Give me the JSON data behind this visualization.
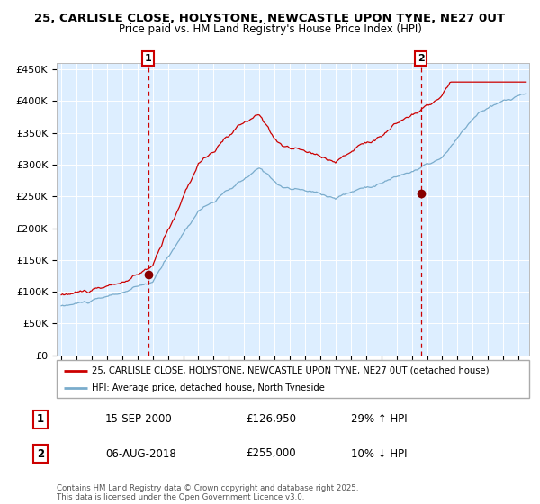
{
  "title1": "25, CARLISLE CLOSE, HOLYSTONE, NEWCASTLE UPON TYNE, NE27 0UT",
  "title2": "Price paid vs. HM Land Registry's House Price Index (HPI)",
  "legend_line1": "25, CARLISLE CLOSE, HOLYSTONE, NEWCASTLE UPON TYNE, NE27 0UT (detached house)",
  "legend_line2": "HPI: Average price, detached house, North Tyneside",
  "marker1_date": "15-SEP-2000",
  "marker1_price": "£126,950",
  "marker1_hpi": "29% ↑ HPI",
  "marker2_date": "06-AUG-2018",
  "marker2_price": "£255,000",
  "marker2_hpi": "10% ↓ HPI",
  "footer": "Contains HM Land Registry data © Crown copyright and database right 2025.\nThis data is licensed under the Open Government Licence v3.0.",
  "red_color": "#cc0000",
  "blue_color": "#7aaccc",
  "bg_color": "#ddeeff",
  "marker1_x": 2000.71,
  "marker1_y": 126950,
  "marker2_x": 2018.59,
  "marker2_y": 255000,
  "ylim": [
    0,
    460000
  ],
  "xlim_start": 1994.7,
  "xlim_end": 2025.7
}
